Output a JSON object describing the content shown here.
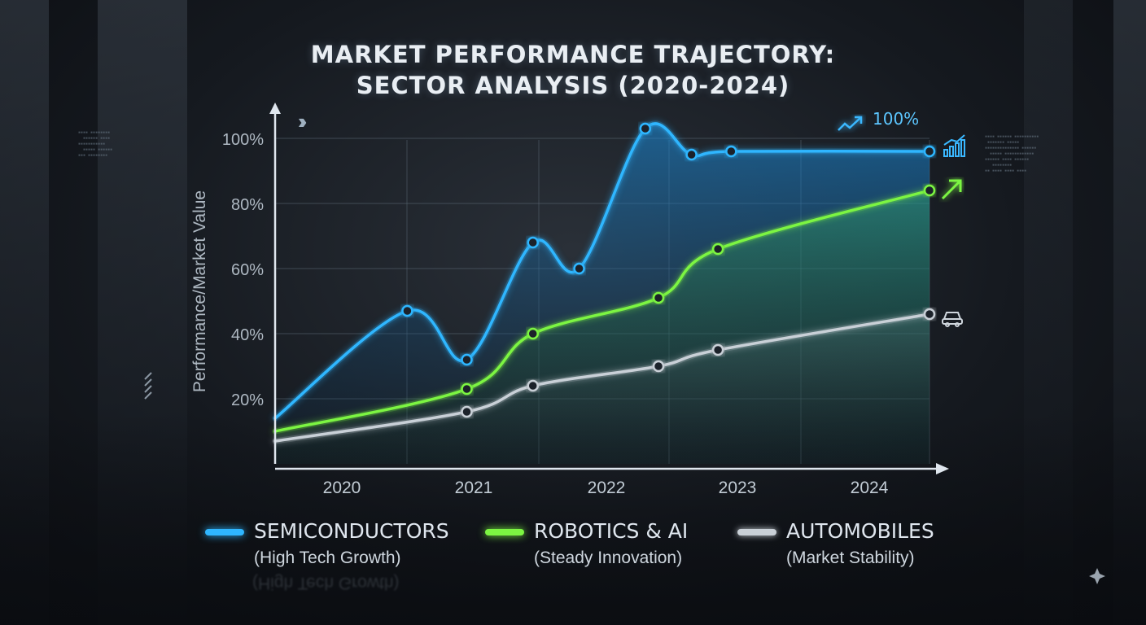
{
  "chart_data": {
    "type": "line",
    "title": "MARKET PERFORMANCE TRAJECTORY:",
    "subtitle": "SECTOR ANALYSIS (2020-2024)",
    "ylabel": "Performance/Market Value",
    "xlabel": "",
    "x_ticks": [
      "2020",
      "2021",
      "2022",
      "2023",
      "2024"
    ],
    "y_ticks": [
      "20%",
      "40%",
      "60%",
      "80%",
      "100%"
    ],
    "xlim": [
      2019.55,
      2024.5
    ],
    "ylim": [
      0,
      105
    ],
    "grid": true,
    "legend_position": "bottom",
    "annotation": "100%",
    "series": [
      {
        "name": "SEMICONDUCTORS",
        "description": "(High Tech Growth)",
        "color": "#2fb6ff",
        "x": [
          2019.55,
          2020.55,
          2021.0,
          2021.5,
          2021.85,
          2022.35,
          2022.7,
          2023.0,
          2024.5
        ],
        "values": [
          14,
          47,
          32,
          68,
          60,
          103,
          95,
          96,
          96
        ]
      },
      {
        "name": "ROBOTICS & AI",
        "description": "(Steady Innovation)",
        "color": "#7cf542",
        "x": [
          2019.55,
          2021.0,
          2021.5,
          2022.45,
          2022.9,
          2024.5
        ],
        "values": [
          10,
          23,
          40,
          51,
          66,
          84
        ]
      },
      {
        "name": "AUTOMOBILES",
        "description": "(Market Stability)",
        "color": "#c9d0d7",
        "x": [
          2019.55,
          2021.0,
          2021.5,
          2022.45,
          2022.9,
          2024.5
        ],
        "values": [
          7,
          16,
          24,
          30,
          35,
          46
        ]
      }
    ],
    "dedupe_note": ""
  },
  "legend_reflection": "(High Tech Growth)",
  "icons": {
    "growth_arrow": "trend-up-icon",
    "bar_chart": "bar-chart-icon",
    "green_arrow": "arrow-up-right-icon",
    "car": "car-icon",
    "sparkle": "sparkle-icon"
  }
}
